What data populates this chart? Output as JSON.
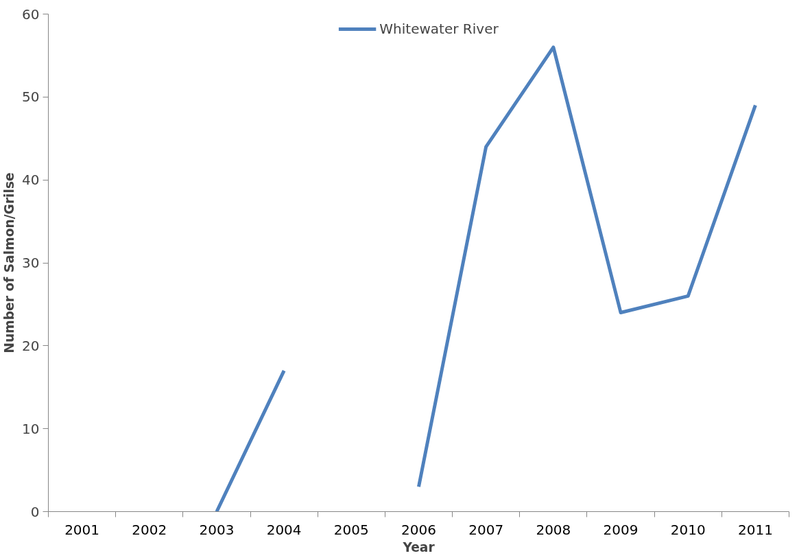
{
  "chart_data": {
    "type": "line",
    "xlabel": "Year",
    "ylabel": "Number of Salmon/Grilse",
    "categories": [
      "2001",
      "2002",
      "2003",
      "2004",
      "2005",
      "2006",
      "2007",
      "2008",
      "2009",
      "2010",
      "2011"
    ],
    "series": [
      {
        "name": "Whitewater River",
        "color": "#4f81bd",
        "values": [
          null,
          null,
          0,
          17,
          null,
          3,
          44,
          56,
          24,
          26,
          49
        ]
      }
    ],
    "ylim": [
      0,
      60
    ],
    "yticks": [
      0,
      10,
      20,
      30,
      40,
      50,
      60
    ],
    "grid": false,
    "legend": "top",
    "marker": "none",
    "line_style": "solid"
  }
}
